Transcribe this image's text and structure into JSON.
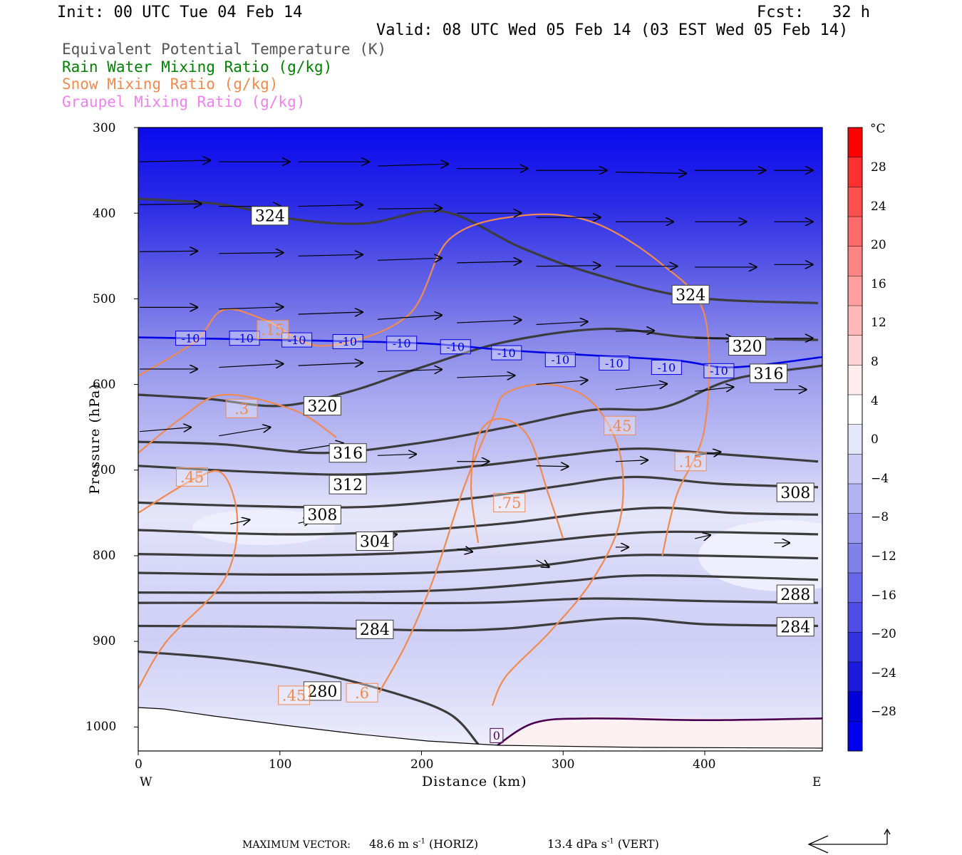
{
  "header": {
    "init": "Init: 00 UTC Tue 04 Feb 14",
    "fcst": "Fcst:   32 h",
    "valid": "Valid: 08 UTC Wed 05 Feb 14 (03 EST Wed 05 Feb 14)"
  },
  "legend": [
    {
      "label": "Equivalent Potential Temperature (K)",
      "color": "#555555"
    },
    {
      "label": "Rain Water Mixing Ratio (g/kg)",
      "color": "#008000"
    },
    {
      "label": "Snow Mixing Ratio (g/kg)",
      "color": "#f08a50"
    },
    {
      "label": "Graupel Mixing Ratio (g/kg)",
      "color": "#ee82ee"
    }
  ],
  "axes": {
    "ylabel": "Pressure (hPa)",
    "xlabel": "Distance (km)",
    "west": "W",
    "east": "E",
    "yticks": [
      "300",
      "400",
      "500",
      "600",
      "700",
      "800",
      "900",
      "1000"
    ],
    "xticks": [
      "0",
      "100",
      "200",
      "300",
      "400"
    ]
  },
  "colorbar": {
    "unit": "°C",
    "labels": [
      "28",
      "24",
      "20",
      "16",
      "12",
      "8",
      "4",
      "0",
      "−4",
      "−8",
      "−12",
      "−16",
      "−20",
      "−24",
      "−28"
    ],
    "colors": [
      "#ff0000",
      "#ff3030",
      "#ff5050",
      "#ff6a6a",
      "#ff8585",
      "#ff9f9f",
      "#ffb9b9",
      "#ffd3d3",
      "#ffeded",
      "#ffffff",
      "#e6e6fa",
      "#ccccf6",
      "#b3b3f2",
      "#9a9aee",
      "#8080ea",
      "#6666e6",
      "#4d4de3",
      "#3333df",
      "#1a1adb",
      "#0000d8",
      "#0000f0"
    ]
  },
  "chart_data": {
    "type": "cross-section",
    "title": "",
    "xlabel": "Distance (km)",
    "ylabel": "Pressure (hPa)",
    "xlim": [
      0,
      483
    ],
    "ylim": [
      300,
      1028
    ],
    "theta_e_contours": [
      {
        "level": 324,
        "points": [
          [
            0,
            383
          ],
          [
            60,
            390
          ],
          [
            110,
            407
          ],
          [
            160,
            412
          ],
          [
            215,
            398
          ],
          [
            270,
            440
          ],
          [
            320,
            470
          ],
          [
            390,
            498
          ],
          [
            480,
            505
          ]
        ]
      },
      {
        "level": 320,
        "points": [
          [
            0,
            612
          ],
          [
            50,
            617
          ],
          [
            100,
            625
          ],
          [
            150,
            608
          ],
          [
            200,
            580
          ],
          [
            260,
            550
          ],
          [
            330,
            535
          ],
          [
            390,
            545
          ],
          [
            480,
            548
          ]
        ]
      },
      {
        "level": 316,
        "points": [
          [
            0,
            667
          ],
          [
            60,
            670
          ],
          [
            130,
            680
          ],
          [
            200,
            668
          ],
          [
            260,
            650
          ],
          [
            320,
            630
          ],
          [
            370,
            627
          ],
          [
            420,
            594
          ],
          [
            483,
            578
          ]
        ]
      },
      {
        "level": 312,
        "points": [
          [
            0,
            695
          ],
          [
            80,
            702
          ],
          [
            160,
            705
          ],
          [
            240,
            695
          ],
          [
            300,
            683
          ],
          [
            350,
            675
          ],
          [
            400,
            680
          ],
          [
            480,
            690
          ]
        ]
      },
      {
        "level": 308,
        "points": [
          [
            0,
            738
          ],
          [
            80,
            742
          ],
          [
            160,
            743
          ],
          [
            240,
            732
          ],
          [
            300,
            718
          ],
          [
            350,
            708
          ],
          [
            410,
            716
          ],
          [
            480,
            720
          ]
        ]
      },
      {
        "level": 304,
        "points": [
          [
            0,
            770
          ],
          [
            100,
            775
          ],
          [
            180,
            772
          ],
          [
            260,
            762
          ],
          [
            320,
            750
          ],
          [
            370,
            744
          ],
          [
            420,
            750
          ],
          [
            480,
            752
          ]
        ]
      },
      {
        "level": 300,
        "points": [
          [
            0,
            798
          ],
          [
            100,
            800
          ],
          [
            200,
            796
          ],
          [
            270,
            786
          ],
          [
            330,
            776
          ],
          [
            380,
            772
          ],
          [
            480,
            775
          ]
        ]
      },
      {
        "level": 296,
        "points": [
          [
            0,
            820
          ],
          [
            100,
            822
          ],
          [
            200,
            820
          ],
          [
            280,
            812
          ],
          [
            340,
            800
          ],
          [
            400,
            800
          ],
          [
            480,
            803
          ]
        ]
      },
      {
        "level": 292,
        "points": [
          [
            0,
            843
          ],
          [
            120,
            843
          ],
          [
            220,
            840
          ],
          [
            300,
            830
          ],
          [
            360,
            823
          ],
          [
            480,
            828
          ]
        ]
      },
      {
        "level": 288,
        "points": [
          [
            0,
            855
          ],
          [
            120,
            855
          ],
          [
            240,
            855
          ],
          [
            320,
            850
          ],
          [
            400,
            853
          ],
          [
            480,
            855
          ]
        ]
      },
      {
        "level": 284,
        "points": [
          [
            0,
            882
          ],
          [
            100,
            883
          ],
          [
            200,
            887
          ],
          [
            260,
            885
          ],
          [
            340,
            873
          ],
          [
            400,
            880
          ],
          [
            480,
            882
          ]
        ]
      },
      {
        "level": 280,
        "points": [
          [
            0,
            912
          ],
          [
            60,
            920
          ],
          [
            120,
            935
          ],
          [
            180,
            960
          ],
          [
            220,
            985
          ],
          [
            240,
            1020
          ]
        ]
      }
    ],
    "isotherm_minus10": [
      [
        0,
        545
      ],
      [
        100,
        548
      ],
      [
        200,
        552
      ],
      [
        260,
        560
      ],
      [
        320,
        566
      ],
      [
        380,
        572
      ],
      [
        420,
        580
      ],
      [
        483,
        568
      ]
    ],
    "isotherm_zero": [
      [
        253,
        1022
      ],
      [
        280,
        995
      ],
      [
        320,
        990
      ],
      [
        400,
        992
      ],
      [
        483,
        990
      ]
    ],
    "snow_contours": [
      {
        "level": 0.15,
        "points": [
          [
            0,
            590
          ],
          [
            40,
            550
          ],
          [
            60,
            513
          ],
          [
            90,
            525
          ],
          [
            130,
            555
          ],
          [
            190,
            520
          ],
          [
            220,
            430
          ],
          [
            270,
            403
          ],
          [
            320,
            410
          ],
          [
            370,
            460
          ],
          [
            400,
            520
          ],
          [
            400,
            650
          ],
          [
            380,
            730
          ],
          [
            370,
            800
          ]
        ]
      },
      {
        "level": 0.3,
        "points": [
          [
            0,
            680
          ],
          [
            30,
            640
          ],
          [
            60,
            612
          ],
          [
            110,
            630
          ],
          [
            140,
            662
          ]
        ]
      },
      {
        "level": 0.45,
        "points": [
          [
            0,
            750
          ],
          [
            40,
            710
          ],
          [
            60,
            705
          ],
          [
            70,
            760
          ],
          [
            60,
            830
          ],
          [
            20,
            900
          ],
          [
            0,
            955
          ]
        ]
      },
      {
        "level": 0.6,
        "points": [
          [
            170,
            960
          ],
          [
            190,
            900
          ],
          [
            210,
            820
          ],
          [
            230,
            720
          ],
          [
            250,
            640
          ],
          [
            260,
            610
          ],
          [
            290,
            600
          ],
          [
            320,
            620
          ],
          [
            340,
            680
          ],
          [
            340,
            760
          ],
          [
            320,
            830
          ],
          [
            290,
            890
          ],
          [
            260,
            940
          ],
          [
            250,
            975
          ]
        ]
      },
      {
        "level": 0.75,
        "points": [
          [
            240,
            785
          ],
          [
            235,
            720
          ],
          [
            240,
            660
          ],
          [
            255,
            640
          ],
          [
            275,
            660
          ],
          [
            290,
            730
          ],
          [
            300,
            780
          ]
        ]
      }
    ],
    "snow_labels": [
      {
        "x": 95,
        "y": 536,
        "text": ".15"
      },
      {
        "x": 73,
        "y": 628,
        "text": ".3"
      },
      {
        "x": 38,
        "y": 708,
        "text": ".45"
      },
      {
        "x": 340,
        "y": 648,
        "text": ".45"
      },
      {
        "x": 390,
        "y": 690,
        "text": ".15"
      },
      {
        "x": 262,
        "y": 738,
        "text": ".75"
      },
      {
        "x": 110,
        "y": 963,
        "text": ".45"
      },
      {
        "x": 158,
        "y": 960,
        "text": ".6"
      }
    ],
    "theta_labels": [
      {
        "x": 93,
        "y": 403,
        "text": "324"
      },
      {
        "x": 390,
        "y": 495,
        "text": "324"
      },
      {
        "x": 430,
        "y": 555,
        "text": "320"
      },
      {
        "x": 130,
        "y": 625,
        "text": "320"
      },
      {
        "x": 445,
        "y": 587,
        "text": "316"
      },
      {
        "x": 148,
        "y": 680,
        "text": "316"
      },
      {
        "x": 148,
        "y": 717,
        "text": "312"
      },
      {
        "x": 464,
        "y": 726,
        "text": "308"
      },
      {
        "x": 130,
        "y": 752,
        "text": "308"
      },
      {
        "x": 167,
        "y": 783,
        "text": "304"
      },
      {
        "x": 464,
        "y": 845,
        "text": "288"
      },
      {
        "x": 167,
        "y": 886,
        "text": "284"
      },
      {
        "x": 464,
        "y": 883,
        "text": "284"
      },
      {
        "x": 130,
        "y": 958,
        "text": "280"
      }
    ],
    "isotherm_labels": [
      {
        "x": 37,
        "y": 546,
        "text": "-10"
      },
      {
        "x": 75,
        "y": 546,
        "text": "-10"
      },
      {
        "x": 112,
        "y": 548,
        "text": "-10"
      },
      {
        "x": 148,
        "y": 550,
        "text": "-10"
      },
      {
        "x": 186,
        "y": 552,
        "text": "-10"
      },
      {
        "x": 224,
        "y": 556,
        "text": "-10"
      },
      {
        "x": 260,
        "y": 563,
        "text": "-10"
      },
      {
        "x": 298,
        "y": 571,
        "text": "-10"
      },
      {
        "x": 336,
        "y": 575,
        "text": "-10"
      },
      {
        "x": 373,
        "y": 580,
        "text": "-10"
      },
      {
        "x": 410,
        "y": 584,
        "text": "-10"
      },
      {
        "x": 253,
        "y": 1010,
        "text": "0"
      }
    ],
    "wind_vectors": [
      {
        "x": 0,
        "y": 340,
        "dx": 55,
        "dy": -2
      },
      {
        "x": 56,
        "y": 340,
        "dx": 55,
        "dy": 0
      },
      {
        "x": 112,
        "y": 340,
        "dx": 55,
        "dy": 0
      },
      {
        "x": 168,
        "y": 345,
        "dx": 55,
        "dy": -3
      },
      {
        "x": 224,
        "y": 348,
        "dx": 55,
        "dy": 0
      },
      {
        "x": 280,
        "y": 350,
        "dx": 55,
        "dy": 0
      },
      {
        "x": 336,
        "y": 352,
        "dx": 55,
        "dy": 2
      },
      {
        "x": 392,
        "y": 350,
        "dx": 55,
        "dy": 0
      },
      {
        "x": 448,
        "y": 350,
        "dx": 30,
        "dy": 0
      },
      {
        "x": 0,
        "y": 390,
        "dx": 48,
        "dy": -1
      },
      {
        "x": 56,
        "y": 392,
        "dx": 48,
        "dy": 0
      },
      {
        "x": 112,
        "y": 392,
        "dx": 50,
        "dy": -2
      },
      {
        "x": 168,
        "y": 395,
        "dx": 50,
        "dy": -1
      },
      {
        "x": 224,
        "y": 400,
        "dx": 50,
        "dy": 0
      },
      {
        "x": 280,
        "y": 405,
        "dx": 50,
        "dy": 0
      },
      {
        "x": 336,
        "y": 410,
        "dx": 45,
        "dy": 0
      },
      {
        "x": 392,
        "y": 410,
        "dx": 40,
        "dy": 0
      },
      {
        "x": 448,
        "y": 410,
        "dx": 30,
        "dy": 0
      },
      {
        "x": 0,
        "y": 445,
        "dx": 45,
        "dy": -1
      },
      {
        "x": 56,
        "y": 447,
        "dx": 50,
        "dy": -1
      },
      {
        "x": 112,
        "y": 450,
        "dx": 50,
        "dy": -2
      },
      {
        "x": 168,
        "y": 455,
        "dx": 50,
        "dy": -3
      },
      {
        "x": 224,
        "y": 458,
        "dx": 50,
        "dy": -2
      },
      {
        "x": 280,
        "y": 462,
        "dx": 50,
        "dy": -1
      },
      {
        "x": 336,
        "y": 462,
        "dx": 48,
        "dy": 0
      },
      {
        "x": 392,
        "y": 463,
        "dx": 48,
        "dy": 0
      },
      {
        "x": 448,
        "y": 460,
        "dx": 30,
        "dy": 0
      },
      {
        "x": 0,
        "y": 510,
        "dx": 45,
        "dy": 0
      },
      {
        "x": 56,
        "y": 512,
        "dx": 50,
        "dy": -3
      },
      {
        "x": 112,
        "y": 518,
        "dx": 50,
        "dy": -3
      },
      {
        "x": 168,
        "y": 524,
        "dx": 50,
        "dy": -6
      },
      {
        "x": 224,
        "y": 528,
        "dx": 50,
        "dy": -4
      },
      {
        "x": 280,
        "y": 530,
        "dx": 40,
        "dy": -4
      },
      {
        "x": 336,
        "y": 538,
        "dx": 30,
        "dy": -1
      },
      {
        "x": 392,
        "y": 546,
        "dx": 30,
        "dy": 0
      },
      {
        "x": 448,
        "y": 546,
        "dx": 30,
        "dy": 0
      },
      {
        "x": 0,
        "y": 582,
        "dx": 45,
        "dy": 0
      },
      {
        "x": 56,
        "y": 580,
        "dx": 50,
        "dy": -5
      },
      {
        "x": 112,
        "y": 578,
        "dx": 50,
        "dy": -4
      },
      {
        "x": 168,
        "y": 585,
        "dx": 50,
        "dy": -3
      },
      {
        "x": 224,
        "y": 592,
        "dx": 45,
        "dy": -3
      },
      {
        "x": 280,
        "y": 600,
        "dx": 40,
        "dy": -6
      },
      {
        "x": 336,
        "y": 606,
        "dx": 40,
        "dy": -8
      },
      {
        "x": 392,
        "y": 608,
        "dx": 30,
        "dy": -6
      },
      {
        "x": 448,
        "y": 606,
        "dx": 25,
        "dy": 0
      },
      {
        "x": 0,
        "y": 655,
        "dx": 40,
        "dy": -6
      },
      {
        "x": 56,
        "y": 660,
        "dx": 40,
        "dy": -12
      },
      {
        "x": 112,
        "y": 677,
        "dx": 35,
        "dy": -10
      },
      {
        "x": 168,
        "y": 683,
        "dx": 30,
        "dy": -2
      },
      {
        "x": 224,
        "y": 690,
        "dx": 25,
        "dy": 0
      },
      {
        "x": 280,
        "y": 695,
        "dx": 25,
        "dy": 1
      },
      {
        "x": 336,
        "y": 690,
        "dx": 25,
        "dy": -2
      },
      {
        "x": 392,
        "y": 683,
        "dx": 20,
        "dy": -5
      },
      {
        "x": 64,
        "y": 763,
        "dx": 15,
        "dy": -6
      },
      {
        "x": 112,
        "y": 762,
        "dx": 10,
        "dy": -4
      },
      {
        "x": 168,
        "y": 780,
        "dx": 15,
        "dy": -6
      },
      {
        "x": 224,
        "y": 792,
        "dx": 12,
        "dy": 4
      },
      {
        "x": 280,
        "y": 805,
        "dx": 10,
        "dy": 10
      },
      {
        "x": 336,
        "y": 790,
        "dx": 10,
        "dy": 0
      },
      {
        "x": 392,
        "y": 780,
        "dx": 12,
        "dy": -5
      },
      {
        "x": 448,
        "y": 785,
        "dx": 12,
        "dy": 0
      }
    ]
  },
  "footer": {
    "max_vector_label": "MAXIMUM VECTOR:",
    "horiz": "48.6 m s",
    "horiz_unit": "(HORIZ)",
    "vert": "13.4 dPa s",
    "vert_unit": "(VERT)",
    "exp": "-1"
  }
}
